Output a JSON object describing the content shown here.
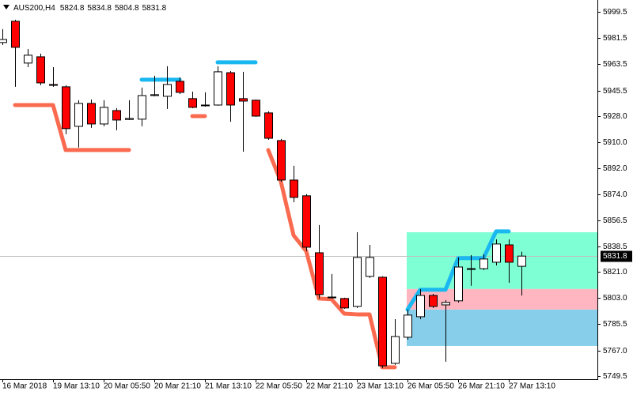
{
  "chart_data": {
    "type": "candlestick",
    "title": "AUS200,H4",
    "categories": [
      "16 Mar 2018",
      null,
      null,
      null,
      "19 Mar 13:10",
      null,
      null,
      null,
      "20 Mar 05:50",
      null,
      null,
      null,
      "20 Mar 21:10",
      null,
      null,
      null,
      "21 Mar 13:10",
      null,
      null,
      null,
      "22 Mar 05:50",
      null,
      null,
      null,
      "22 Mar 21:10",
      null,
      null,
      null,
      "23 Mar 13:10",
      null,
      null,
      null,
      "26 Mar 05:50",
      null,
      null,
      null,
      "26 Mar 21:10",
      null,
      null,
      null,
      "27 Mar 13:10",
      null
    ],
    "open": [
      5978.4,
      5993.0,
      5964.3,
      5968.6,
      5949.6,
      5948.0,
      5920.9,
      5936.6,
      5922.5,
      5931.7,
      5925.6,
      5925.8,
      5942.0,
      5941.5,
      5951.8,
      5939.9,
      5935.0,
      5935.5,
      5957.7,
      5939.9,
      5938.8,
      5930.1,
      5911.1,
      5884.0,
      5873.2,
      5834.1,
      5803.2,
      5802.7,
      5797.3,
      5817.9,
      5817.3,
      5758.2,
      5776.1,
      5790.2,
      5804.8,
      5798.3,
      5801.1,
      5822.7,
      5823.2,
      5827.6,
      5839.5,
      5824.8
    ],
    "high": [
      5987.6,
      5994.0,
      5974.0,
      5970.8,
      5961.5,
      5949.1,
      5938.8,
      5939.3,
      5938.8,
      5933.3,
      5938.8,
      5947.5,
      5955.6,
      5962.1,
      5954.5,
      5944.7,
      5944.2,
      5962.1,
      5958.8,
      5958.3,
      5939.3,
      5931.2,
      5912.2,
      5893.8,
      5874.3,
      5853.1,
      5819.5,
      5803.2,
      5848.2,
      5839.5,
      5817.9,
      5788.5,
      5795.1,
      5809.2,
      5805.9,
      5801.6,
      5830.9,
      5832.5,
      5833.0,
      5843.3,
      5843.3,
      5834.8
    ],
    "low": [
      5976.7,
      5948.0,
      5961.5,
      5949.1,
      5948.0,
      5915.5,
      5906.3,
      5919.8,
      5920.9,
      5918.2,
      5925.2,
      5920.9,
      5941.5,
      5932.8,
      5943.1,
      5933.3,
      5934.4,
      5935.0,
      5924.1,
      5903.5,
      5927.4,
      5911.6,
      5882.9,
      5868.8,
      5835.2,
      5802.7,
      5802.7,
      5795.6,
      5796.2,
      5816.8,
      5755.0,
      5757.1,
      5774.4,
      5788.5,
      5796.2,
      5759.3,
      5800.0,
      5811.4,
      5822.2,
      5825.4,
      5813.5,
      5804.8
    ],
    "close": [
      5980.5,
      5975.1,
      5969.7,
      5950.7,
      5949.0,
      5919.3,
      5936.6,
      5922.5,
      5933.9,
      5925.2,
      5926.3,
      5942.0,
      5942.6,
      5949.6,
      5944.2,
      5933.9,
      5935.5,
      5958.3,
      5935.5,
      5938.2,
      5927.9,
      5912.7,
      5884.0,
      5872.1,
      5837.9,
      5805.4,
      5803.7,
      5796.2,
      5830.9,
      5830.9,
      5756.5,
      5776.6,
      5791.3,
      5804.8,
      5797.3,
      5800.0,
      5824.3,
      5823.2,
      5829.8,
      5840.1,
      5827.6,
      5831.8
    ],
    "up_color": "#ffffff",
    "down_color": "#ff0000",
    "lines": [
      {
        "color": "#fa6a4f",
        "values": [
          null,
          5935.5,
          5935.5,
          5935.5,
          5935.5,
          5904.6,
          5904.6,
          5904.6,
          5904.6,
          5904.6,
          5904.6,
          null,
          null,
          null,
          null,
          5927.9,
          5927.9,
          null,
          null,
          null,
          null,
          5904.6,
          5882.9,
          5846.1,
          5835.2,
          5802.7,
          5802.2,
          5792.3,
          5791.8,
          5791.8,
          5755.5,
          5755.5,
          null,
          null,
          null,
          null,
          null,
          null,
          null,
          null,
          null,
          null
        ]
      },
      {
        "color": "#1ab8f0",
        "values": [
          null,
          null,
          null,
          null,
          null,
          null,
          null,
          null,
          null,
          null,
          null,
          5952.9,
          5952.9,
          5952.9,
          5952.9,
          null,
          null,
          5964.8,
          5964.8,
          5964.8,
          5964.8,
          null,
          null,
          null,
          null,
          null,
          null,
          null,
          null,
          null,
          null,
          null,
          5795.1,
          5808.7,
          5808.7,
          5808.7,
          5830.4,
          5830.4,
          5830.4,
          5848.8,
          5848.8,
          null
        ]
      }
    ],
    "zones": [
      {
        "color": "#7fffd4",
        "low": 5809.2,
        "high": 5848.2
      },
      {
        "color": "#ffb6c1",
        "low": 5795.1,
        "high": 5809.2
      },
      {
        "color": "#87ceeb",
        "low": 5770.1,
        "high": 5795.1
      }
    ],
    "ylim": [
      5747.3,
      6007.6
    ],
    "yticks": [
      5999.5,
      5981.5,
      5963.5,
      5945.5,
      {
        "value": 5928.0,
        "label": "5928.0"
      },
      {
        "value": 5910.0,
        "label": "5910.0"
      },
      {
        "value": 5892.0,
        "label": "5892.0"
      },
      {
        "value": 5874.0,
        "label": "5874.0"
      },
      5856.5,
      5838.5,
      {
        "value": 5821.0,
        "label": "5821.0"
      },
      {
        "value": 5803.0,
        "label": "5803.0"
      },
      5785.5,
      {
        "value": 5767.0,
        "label": "5767.0"
      },
      5749.5
    ]
  }
}
